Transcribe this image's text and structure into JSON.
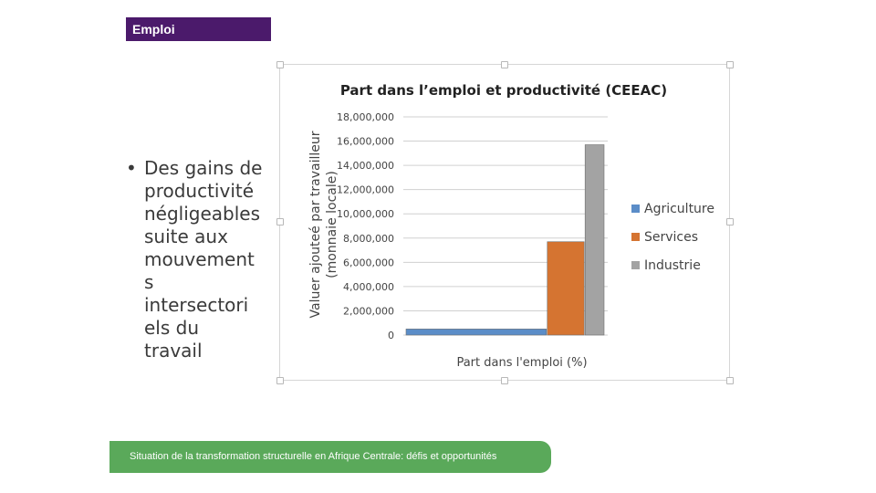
{
  "header": {
    "tag": "Emploi"
  },
  "bullet": {
    "lines": [
      "Des gains de",
      "productivité",
      "négligeables",
      "suite aux",
      "mouvement",
      "s",
      "intersectori",
      "els du",
      "travail"
    ]
  },
  "footer": {
    "text": "Situation de la transformation structurelle en Afrique Centrale:  défis et opportunités"
  },
  "colors": {
    "agriculture": "#5b8dc8",
    "services": "#d57431",
    "industrie": "#a3a3a3",
    "header_bg": "#4b1a6b",
    "footer_bg": "#5aa95a"
  },
  "chart_data": {
    "type": "bar",
    "title": "Part dans l’emploi et productivité (CEEAC)",
    "xlabel": "Part dans l'emploi (%)",
    "ylabel": "Valuer ajouteé par travailleur (monnaie locale)",
    "ylim": [
      0,
      18000000
    ],
    "yticks": [
      "18,000,000",
      "16,000,000",
      "14,000,000",
      "12,000,000",
      "10,000,000",
      "8,000,000",
      "6,000,000",
      "4,000,000",
      "2,000,000",
      "0"
    ],
    "ytick_values": [
      18000000,
      16000000,
      14000000,
      12000000,
      10000000,
      8000000,
      6000000,
      4000000,
      2000000,
      0
    ],
    "grid": true,
    "legend_position": "right",
    "series": [
      {
        "name": "Agriculture",
        "value": 500000,
        "share": 0.71,
        "color": "#5b8dc8"
      },
      {
        "name": "Services",
        "value": 7700000,
        "share": 0.19,
        "color": "#d57431"
      },
      {
        "name": "Industrie",
        "value": 15700000,
        "share": 0.1,
        "color": "#a3a3a3"
      }
    ]
  }
}
